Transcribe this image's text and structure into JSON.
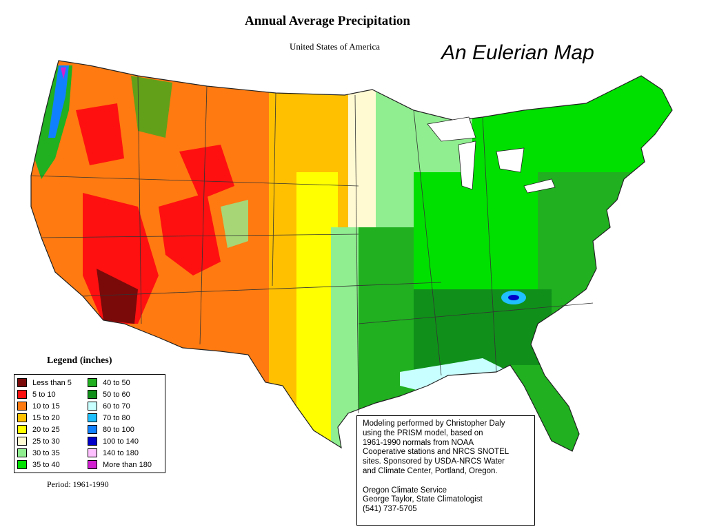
{
  "header": {
    "title": "Annual Average Precipitation",
    "subtitle": "United States of America",
    "slide_title": "An Eulerian Map"
  },
  "legend": {
    "title": "Legend (inches)",
    "items": [
      {
        "label": "Less than 5",
        "color": "#7a0a0a"
      },
      {
        "label": "5 to 10",
        "color": "#ff1010"
      },
      {
        "label": "10 to 15",
        "color": "#ff7a10"
      },
      {
        "label": "15 to 20",
        "color": "#ffc000"
      },
      {
        "label": "20 to 25",
        "color": "#ffff00"
      },
      {
        "label": "25 to 30",
        "color": "#fffad2"
      },
      {
        "label": "30 to 35",
        "color": "#90ee90"
      },
      {
        "label": "35 to 40",
        "color": "#00e000"
      },
      {
        "label": "40 to 50",
        "color": "#20b020"
      },
      {
        "label": "50 to 60",
        "color": "#10901a"
      },
      {
        "label": "60 to 70",
        "color": "#c8ffff"
      },
      {
        "label": "70 to 80",
        "color": "#20c0ff"
      },
      {
        "label": "80 to 100",
        "color": "#1080ff"
      },
      {
        "label": "100 to 140",
        "color": "#0000c8"
      },
      {
        "label": "140 to 180",
        "color": "#ffc0ff"
      },
      {
        "label": "More than 180",
        "color": "#d020d0"
      }
    ],
    "period": "Period: 1961-1990"
  },
  "credit": {
    "lines": [
      "Modeling performed by Christopher Daly",
      "using the PRISM model, based on",
      "1961-1990 normals from NOAA",
      "Cooperative stations and NRCS SNOTEL",
      "sites.  Sponsored by USDA-NRCS Water",
      "and Climate Center, Portland, Oregon.",
      "",
      "Oregon Climate Service",
      "George Taylor, State Climatologist",
      "(541) 737-5705"
    ]
  }
}
